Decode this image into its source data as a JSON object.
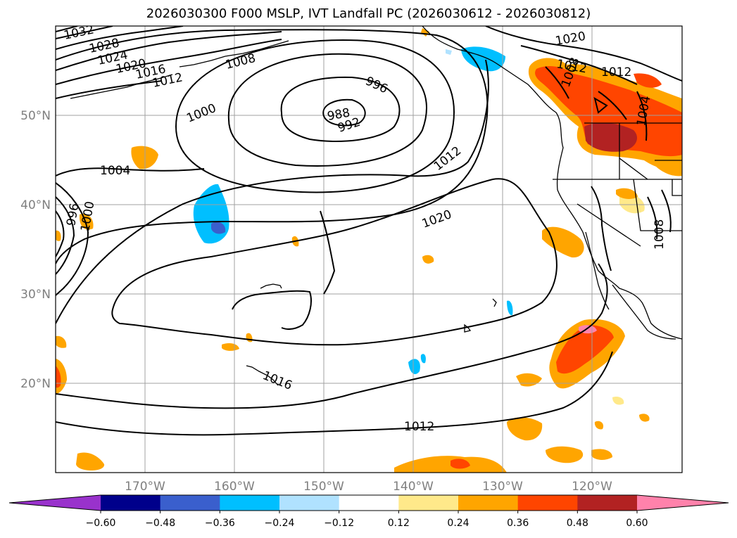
{
  "title": "2026030300 F000 MSLP, IVT Landfall PC (2026030612 - 2026030812)",
  "map": {
    "lon_ticks": [
      "170°W",
      "160°W",
      "150°W",
      "140°W",
      "130°W",
      "120°W"
    ],
    "lat_ticks": [
      "50°N",
      "40°N",
      "30°N",
      "20°N"
    ],
    "lon_range": [
      -180,
      -110
    ],
    "lat_range": [
      10,
      60
    ],
    "grid": true
  },
  "mslp_contour_labels": [
    "1032",
    "1028",
    "1024",
    "1020",
    "1016",
    "1012",
    "1008",
    "1004",
    "1000",
    "996",
    "992",
    "988",
    "996",
    "1000",
    "1020",
    "1012",
    "1016",
    "1012",
    "1020",
    "1012",
    "1008",
    "1012",
    "1004",
    "1008"
  ],
  "colorbar": {
    "ticks": [
      "−0.60",
      "−0.48",
      "−0.36",
      "−0.24",
      "−0.12",
      "0.12",
      "0.24",
      "0.36",
      "0.48",
      "0.60"
    ],
    "colors": [
      "#9932cc",
      "#00008b",
      "#3a5fcd",
      "#00bfff",
      "#b0e2ff",
      "#ffffff",
      "#ffe98a",
      "#ffa500",
      "#ff4500",
      "#b22222",
      "#ff82ab"
    ]
  }
}
